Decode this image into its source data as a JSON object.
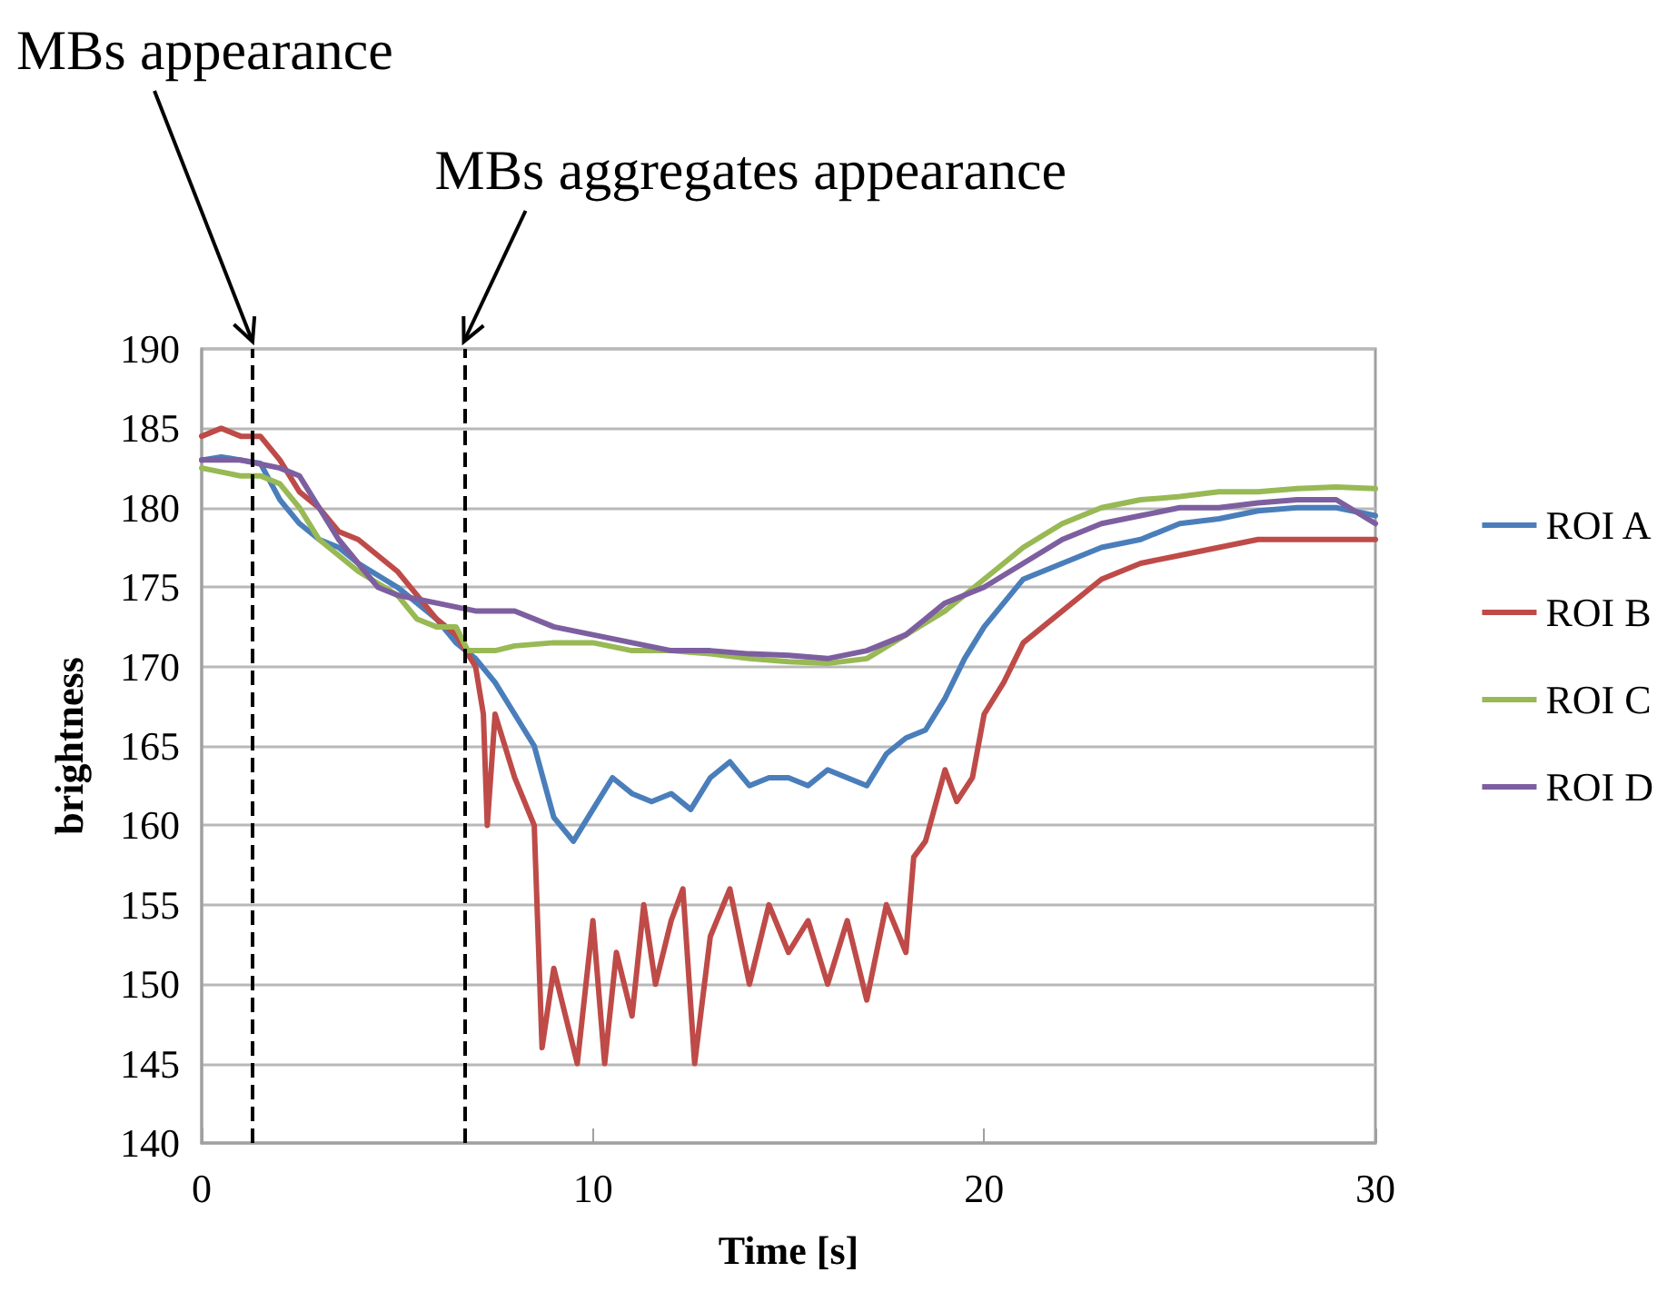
{
  "chart_data": {
    "type": "line",
    "xlabel": "Time [s]",
    "ylabel": "brightness",
    "xlim": [
      0,
      30
    ],
    "xticks": [
      0,
      10,
      20,
      30
    ],
    "ylim": [
      140,
      190
    ],
    "yticks": [
      140,
      145,
      150,
      155,
      160,
      165,
      170,
      175,
      180,
      185,
      190
    ],
    "grid": "y",
    "legend": "right",
    "marker": "none",
    "line_style": "solid",
    "ref_lines": [
      {
        "axis": "x",
        "value": 1.3,
        "label": "MBs appearance",
        "color": "#000000",
        "line_style": "dashed"
      },
      {
        "axis": "x",
        "value": 6.7,
        "label": "MBs aggregates appearance",
        "color": "#000000",
        "line_style": "dashed"
      }
    ],
    "series": [
      {
        "name": "ROI A",
        "color": "#4a7ebb",
        "x": [
          0,
          0.5,
          1,
          1.5,
          2,
          2.5,
          3,
          3.5,
          4,
          5,
          6,
          6.5,
          7,
          7.5,
          8,
          8.5,
          9,
          9.5,
          10,
          10.5,
          11,
          11.5,
          12,
          12.5,
          13,
          13.5,
          14,
          14.5,
          15,
          15.5,
          16,
          16.5,
          17,
          17.5,
          18,
          18.5,
          19,
          19.5,
          20,
          20.5,
          21,
          22,
          23,
          24,
          25,
          26,
          27,
          28,
          29,
          30
        ],
        "values": [
          183,
          183.2,
          183,
          182.8,
          180.5,
          179,
          178,
          177.5,
          176.5,
          175,
          173,
          171.5,
          170.5,
          169,
          167,
          165,
          160.5,
          159,
          161,
          163,
          162,
          161.5,
          162,
          161,
          163,
          164,
          162.5,
          163,
          163,
          162.5,
          163.5,
          163,
          162.5,
          164.5,
          165.5,
          166,
          168,
          170.5,
          172.5,
          174,
          175.5,
          176.5,
          177.5,
          178,
          179,
          179.3,
          179.8,
          180,
          180,
          179.5
        ]
      },
      {
        "name": "ROI B",
        "color": "#be4b48",
        "x": [
          0,
          0.5,
          1,
          1.5,
          2,
          2.5,
          3,
          3.5,
          4,
          5,
          6,
          6.5,
          7,
          7.2,
          7.3,
          7.5,
          8,
          8.5,
          8.7,
          9,
          9.3,
          9.6,
          10,
          10.3,
          10.6,
          11,
          11.3,
          11.6,
          12,
          12.3,
          12.6,
          13,
          13.5,
          14,
          14.5,
          15,
          15.5,
          16,
          16.5,
          17,
          17.5,
          18,
          18.2,
          18.5,
          19,
          19.3,
          19.7,
          20,
          20.5,
          21,
          21.5,
          22,
          23,
          24,
          25,
          26,
          27,
          28,
          29,
          30
        ],
        "values": [
          184.5,
          185,
          184.5,
          184.5,
          183,
          181,
          180,
          178.5,
          178,
          176,
          173,
          172,
          170,
          167,
          160,
          167,
          163,
          160,
          146,
          151,
          148,
          145,
          154,
          145,
          152,
          148,
          155,
          150,
          154,
          156,
          145,
          153,
          156,
          150,
          155,
          152,
          154,
          150,
          154,
          149,
          155,
          152,
          158,
          159,
          163.5,
          161.5,
          163,
          167,
          169,
          171.5,
          172.5,
          173.5,
          175.5,
          176.5,
          177,
          177.5,
          178,
          178,
          178,
          178
        ]
      },
      {
        "name": "ROI C",
        "color": "#98b954",
        "x": [
          0,
          1,
          1.5,
          2,
          2.5,
          3,
          3.5,
          4,
          5,
          5.5,
          6,
          6.5,
          6.8,
          7.5,
          8,
          9,
          10,
          11,
          12,
          13,
          14,
          15,
          16,
          17,
          18,
          19,
          20,
          21,
          22,
          23,
          24,
          25,
          26,
          27,
          28,
          29,
          30
        ],
        "values": [
          182.5,
          182,
          182,
          181.5,
          180,
          178,
          177,
          176,
          174.5,
          173,
          172.5,
          172.5,
          171,
          171,
          171.3,
          171.5,
          171.5,
          171,
          171,
          170.8,
          170.5,
          170.3,
          170.2,
          170.5,
          172,
          173.5,
          175.5,
          177.5,
          179,
          180,
          180.5,
          180.7,
          181,
          181,
          181.2,
          181.3,
          181.2
        ]
      },
      {
        "name": "ROI D",
        "color": "#7d5fa0",
        "x": [
          0,
          1,
          2,
          2.5,
          3,
          3.5,
          4,
          4.5,
          5,
          6,
          7,
          8,
          9,
          10,
          11,
          12,
          13,
          14,
          15,
          16,
          17,
          18,
          19,
          20,
          21,
          22,
          23,
          24,
          25,
          26,
          27,
          28,
          29,
          30
        ],
        "values": [
          183,
          183,
          182.5,
          182,
          180,
          178,
          176.5,
          175,
          174.5,
          174,
          173.5,
          173.5,
          172.5,
          172,
          171.5,
          171,
          171,
          170.8,
          170.7,
          170.5,
          171,
          172,
          174,
          175,
          176.5,
          178,
          179,
          179.5,
          180,
          180,
          180.3,
          180.5,
          180.5,
          179
        ]
      }
    ]
  }
}
